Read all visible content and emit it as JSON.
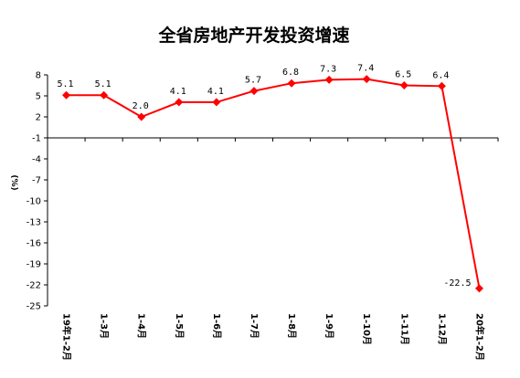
{
  "chart_data": {
    "type": "line",
    "title": "全省房地产开发投资增速",
    "ylabel": "(%)",
    "categories": [
      "19年1-2月",
      "1-3月",
      "1-4月",
      "1-5月",
      "1-6月",
      "1-7月",
      "1-8月",
      "1-9月",
      "1-10月",
      "1-11月",
      "1-12月",
      "20年1-2月"
    ],
    "series": [
      {
        "values": [
          5.1,
          5.1,
          2.0,
          4.1,
          4.1,
          5.7,
          6.8,
          7.3,
          7.4,
          6.5,
          6.4,
          -22.5
        ]
      }
    ],
    "data_labels": [
      "5.1",
      "5.1",
      "2.0",
      "4.1",
      "4.1",
      "5.7",
      "6.8",
      "7.3",
      "7.4",
      "6.5",
      "6.4",
      "-22.5"
    ],
    "ylim": [
      -25,
      8
    ],
    "yticks": [
      8,
      5,
      2,
      -1,
      -4,
      -7,
      -10,
      -13,
      -16,
      -19,
      -22,
      -25
    ],
    "grid": false,
    "legend": "none",
    "line_color": "#ff0000",
    "marker": "diamond"
  }
}
